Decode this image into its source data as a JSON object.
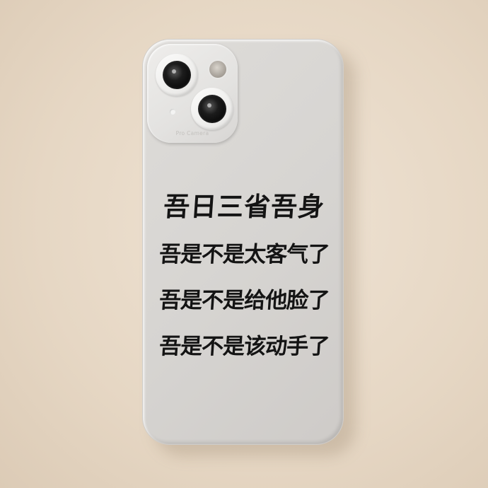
{
  "case_printed_text": {
    "lines": [
      "吾日三省吾身",
      "吾是不是太客气了",
      "吾是不是给他脸了",
      "吾是不是该动手了"
    ]
  },
  "camera_bump": {
    "label": "Pro Camera"
  },
  "colors": {
    "background": "#e6d7c4",
    "case": "#d6d4d1",
    "text": "#141414"
  }
}
